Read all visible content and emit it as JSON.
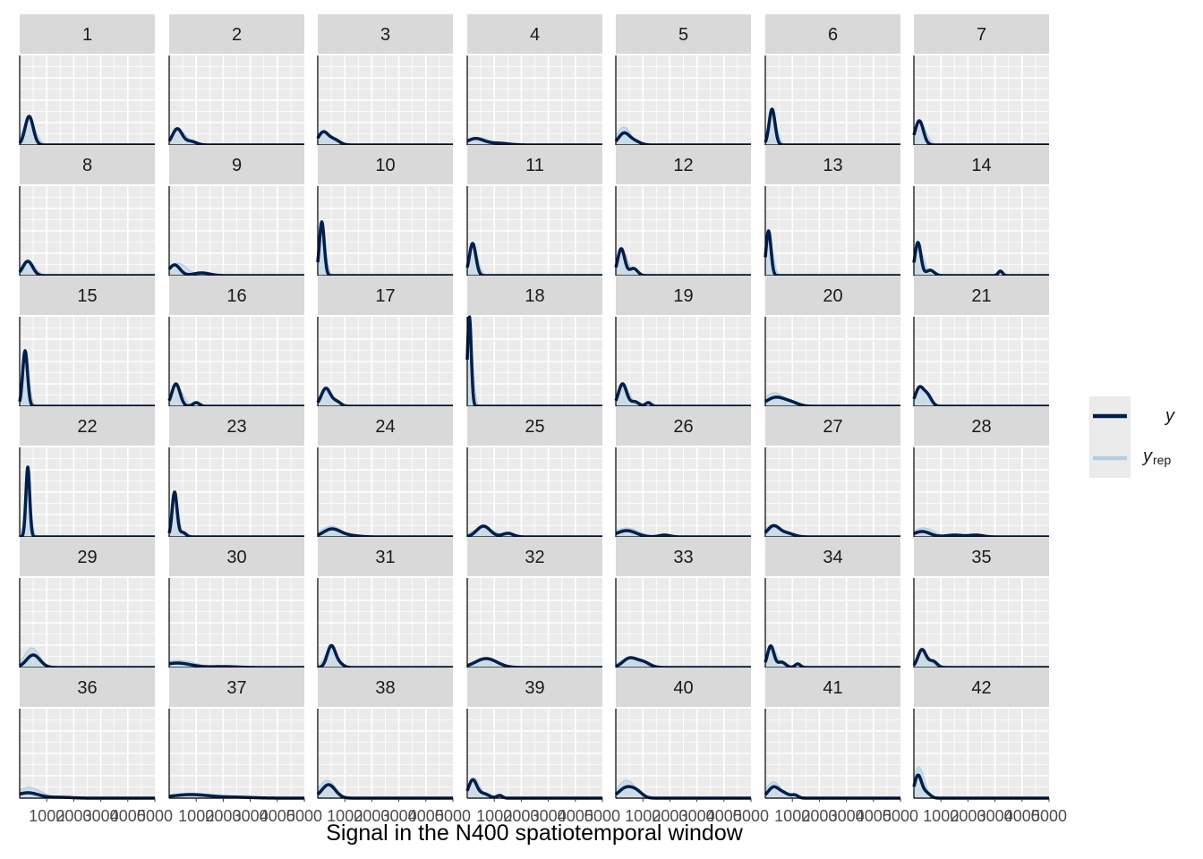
{
  "chart_data": {
    "type": "density",
    "xlabel": "Signal in the N400 spatiotemporal window",
    "ylabel": "",
    "xlim": [
      0,
      5000
    ],
    "x_ticks": [
      "1000",
      "2000",
      "3000",
      "4000",
      "5000"
    ],
    "grid": true,
    "legend_position": "right",
    "legend": [
      {
        "key": "y",
        "label": "y",
        "color": "#011f4b"
      },
      {
        "key": "yrep",
        "label": "y",
        "subscript": "rep",
        "color": "#b3cde0"
      }
    ],
    "panels": [
      {
        "label": "1",
        "y_peaks": [
          [
            350,
            0.32,
            150
          ]
        ],
        "yrep_peaks": [
          [
            350,
            0.3,
            220
          ]
        ]
      },
      {
        "label": "2",
        "y_peaks": [
          [
            300,
            0.18,
            180
          ],
          [
            800,
            0.04,
            200
          ]
        ],
        "yrep_peaks": [
          [
            350,
            0.16,
            300
          ]
        ]
      },
      {
        "label": "3",
        "y_peaks": [
          [
            200,
            0.14,
            180
          ],
          [
            600,
            0.06,
            200
          ]
        ],
        "yrep_peaks": [
          [
            300,
            0.13,
            320
          ]
        ]
      },
      {
        "label": "4",
        "y_peaks": [
          [
            300,
            0.07,
            300
          ],
          [
            1100,
            0.02,
            400
          ]
        ],
        "yrep_peaks": [
          [
            400,
            0.08,
            450
          ]
        ]
      },
      {
        "label": "5",
        "y_peaks": [
          [
            300,
            0.13,
            200
          ],
          [
            700,
            0.04,
            200
          ]
        ],
        "yrep_peaks": [
          [
            300,
            0.2,
            260
          ]
        ]
      },
      {
        "label": "6",
        "y_peaks": [
          [
            250,
            0.4,
            110
          ]
        ],
        "yrep_peaks": [
          [
            260,
            0.36,
            160
          ]
        ]
      },
      {
        "label": "7",
        "y_peaks": [
          [
            200,
            0.27,
            150
          ]
        ],
        "yrep_peaks": [
          [
            230,
            0.25,
            220
          ]
        ]
      },
      {
        "label": "8",
        "y_peaks": [
          [
            300,
            0.16,
            180
          ]
        ],
        "yrep_peaks": [
          [
            300,
            0.17,
            250
          ]
        ]
      },
      {
        "label": "9",
        "y_peaks": [
          [
            200,
            0.12,
            200
          ],
          [
            1200,
            0.03,
            300
          ]
        ],
        "yrep_peaks": [
          [
            300,
            0.14,
            350
          ]
        ]
      },
      {
        "label": "10",
        "y_peaks": [
          [
            150,
            0.6,
            90
          ]
        ],
        "yrep_peaks": [
          [
            160,
            0.5,
            130
          ]
        ]
      },
      {
        "label": "11",
        "y_peaks": [
          [
            200,
            0.36,
            120
          ]
        ],
        "yrep_peaks": [
          [
            220,
            0.33,
            170
          ]
        ]
      },
      {
        "label": "12",
        "y_peaks": [
          [
            200,
            0.3,
            130
          ],
          [
            650,
            0.08,
            150
          ]
        ],
        "yrep_peaks": [
          [
            250,
            0.27,
            200
          ]
        ]
      },
      {
        "label": "13",
        "y_peaks": [
          [
            120,
            0.5,
            90
          ]
        ],
        "yrep_peaks": [
          [
            140,
            0.44,
            140
          ]
        ]
      },
      {
        "label": "14",
        "y_peaks": [
          [
            150,
            0.37,
            110
          ],
          [
            600,
            0.06,
            150
          ],
          [
            3200,
            0.05,
            80
          ]
        ],
        "yrep_peaks": [
          [
            200,
            0.3,
            180
          ]
        ]
      },
      {
        "label": "15",
        "y_peaks": [
          [
            200,
            0.62,
            90
          ]
        ],
        "yrep_peaks": [
          [
            220,
            0.5,
            130
          ]
        ]
      },
      {
        "label": "16",
        "y_peaks": [
          [
            250,
            0.25,
            150
          ],
          [
            1000,
            0.04,
            120
          ]
        ],
        "yrep_peaks": [
          [
            280,
            0.22,
            230
          ]
        ]
      },
      {
        "label": "17",
        "y_peaks": [
          [
            300,
            0.2,
            170
          ],
          [
            700,
            0.05,
            150
          ]
        ],
        "yrep_peaks": [
          [
            300,
            0.18,
            250
          ]
        ]
      },
      {
        "label": "18",
        "y_peaks": [
          [
            80,
            1.0,
            70
          ]
        ],
        "yrep_peaks": [
          [
            100,
            0.82,
            110
          ]
        ]
      },
      {
        "label": "19",
        "y_peaks": [
          [
            250,
            0.25,
            150
          ],
          [
            700,
            0.05,
            150
          ],
          [
            1200,
            0.04,
            100
          ]
        ],
        "yrep_peaks": [
          [
            280,
            0.23,
            230
          ]
        ]
      },
      {
        "label": "20",
        "y_peaks": [
          [
            400,
            0.1,
            350
          ],
          [
            1000,
            0.03,
            250
          ]
        ],
        "yrep_peaks": [
          [
            350,
            0.15,
            400
          ]
        ]
      },
      {
        "label": "21",
        "y_peaks": [
          [
            200,
            0.2,
            150
          ],
          [
            500,
            0.12,
            150
          ]
        ],
        "yrep_peaks": [
          [
            280,
            0.2,
            220
          ]
        ]
      },
      {
        "label": "22",
        "y_peaks": [
          [
            300,
            0.78,
            70
          ]
        ],
        "yrep_peaks": [
          [
            300,
            0.65,
            110
          ]
        ]
      },
      {
        "label": "23",
        "y_peaks": [
          [
            200,
            0.5,
            90
          ],
          [
            500,
            0.05,
            120
          ]
        ],
        "yrep_peaks": [
          [
            220,
            0.42,
            140
          ]
        ]
      },
      {
        "label": "24",
        "y_peaks": [
          [
            500,
            0.08,
            300
          ],
          [
            1000,
            0.02,
            400
          ]
        ],
        "yrep_peaks": [
          [
            500,
            0.12,
            380
          ]
        ]
      },
      {
        "label": "25",
        "y_peaks": [
          [
            600,
            0.12,
            250
          ],
          [
            1500,
            0.04,
            200
          ]
        ],
        "yrep_peaks": [
          [
            600,
            0.1,
            420
          ]
        ]
      },
      {
        "label": "26",
        "y_peaks": [
          [
            400,
            0.07,
            350
          ],
          [
            1800,
            0.02,
            200
          ]
        ],
        "yrep_peaks": [
          [
            400,
            0.1,
            450
          ]
        ]
      },
      {
        "label": "27",
        "y_peaks": [
          [
            300,
            0.12,
            220
          ],
          [
            800,
            0.04,
            250
          ]
        ],
        "yrep_peaks": [
          [
            300,
            0.14,
            320
          ]
        ]
      },
      {
        "label": "28",
        "y_peaks": [
          [
            300,
            0.06,
            300
          ],
          [
            1500,
            0.02,
            300
          ],
          [
            2300,
            0.02,
            250
          ]
        ],
        "yrep_peaks": [
          [
            350,
            0.1,
            400
          ]
        ]
      },
      {
        "label": "29",
        "y_peaks": [
          [
            500,
            0.14,
            250
          ]
        ],
        "yrep_peaks": [
          [
            450,
            0.22,
            280
          ]
        ]
      },
      {
        "label": "30",
        "y_peaks": [
          [
            300,
            0.05,
            500
          ],
          [
            2000,
            0.01,
            500
          ]
        ],
        "yrep_peaks": [
          [
            350,
            0.08,
            600
          ]
        ]
      },
      {
        "label": "31",
        "y_peaks": [
          [
            500,
            0.24,
            150
          ],
          [
            800,
            0.04,
            150
          ]
        ],
        "yrep_peaks": [
          [
            500,
            0.22,
            230
          ]
        ]
      },
      {
        "label": "32",
        "y_peaks": [
          [
            700,
            0.1,
            400
          ]
        ],
        "yrep_peaks": [
          [
            650,
            0.1,
            450
          ]
        ]
      },
      {
        "label": "33",
        "y_peaks": [
          [
            500,
            0.1,
            250
          ],
          [
            1000,
            0.06,
            250
          ]
        ],
        "yrep_peaks": [
          [
            500,
            0.1,
            380
          ]
        ]
      },
      {
        "label": "34",
        "y_peaks": [
          [
            200,
            0.24,
            120
          ],
          [
            600,
            0.06,
            150
          ],
          [
            1200,
            0.04,
            100
          ]
        ],
        "yrep_peaks": [
          [
            250,
            0.2,
            220
          ]
        ]
      },
      {
        "label": "35",
        "y_peaks": [
          [
            300,
            0.2,
            150
          ],
          [
            700,
            0.07,
            150
          ]
        ],
        "yrep_peaks": [
          [
            330,
            0.18,
            230
          ]
        ]
      },
      {
        "label": "36",
        "y_peaks": [
          [
            300,
            0.06,
            400
          ],
          [
            1500,
            0.01,
            400
          ]
        ],
        "yrep_peaks": [
          [
            350,
            0.12,
            450
          ]
        ]
      },
      {
        "label": "37",
        "y_peaks": [
          [
            800,
            0.04,
            700
          ],
          [
            2500,
            0.01,
            600
          ]
        ],
        "yrep_peaks": [
          [
            800,
            0.04,
            800
          ]
        ]
      },
      {
        "label": "38",
        "y_peaks": [
          [
            400,
            0.15,
            250
          ]
        ],
        "yrep_peaks": [
          [
            350,
            0.2,
            300
          ]
        ]
      },
      {
        "label": "39",
        "y_peaks": [
          [
            200,
            0.2,
            150
          ],
          [
            600,
            0.05,
            200
          ],
          [
            1200,
            0.03,
            100
          ]
        ],
        "yrep_peaks": [
          [
            250,
            0.22,
            220
          ]
        ]
      },
      {
        "label": "40",
        "y_peaks": [
          [
            400,
            0.12,
            280
          ],
          [
            800,
            0.05,
            200
          ]
        ],
        "yrep_peaks": [
          [
            400,
            0.2,
            330
          ]
        ]
      },
      {
        "label": "41",
        "y_peaks": [
          [
            300,
            0.12,
            200
          ],
          [
            700,
            0.05,
            200
          ],
          [
            1100,
            0.03,
            120
          ]
        ],
        "yrep_peaks": [
          [
            300,
            0.18,
            280
          ]
        ]
      },
      {
        "label": "42",
        "y_peaks": [
          [
            150,
            0.25,
            130
          ],
          [
            450,
            0.06,
            150
          ]
        ],
        "yrep_peaks": [
          [
            180,
            0.35,
            200
          ]
        ]
      }
    ]
  }
}
